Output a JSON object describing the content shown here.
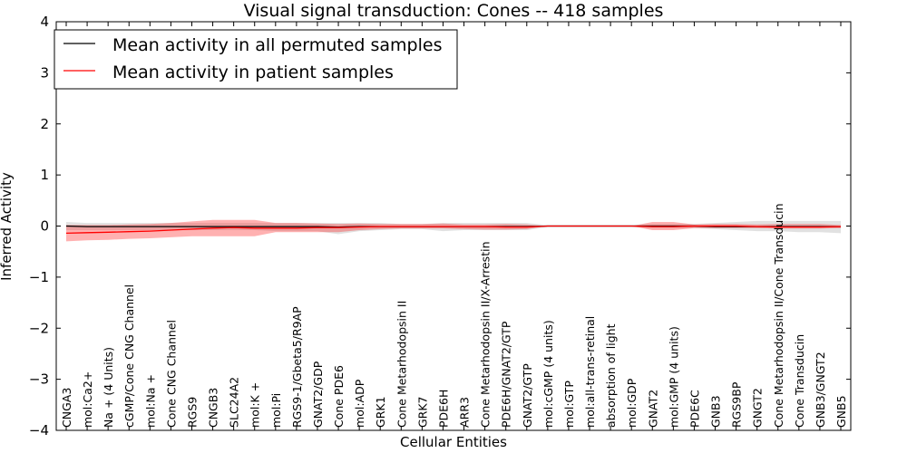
{
  "chart_data": {
    "type": "line",
    "title": "Visual signal transduction: Cones -- 418 samples",
    "xlabel": "Cellular Entities",
    "ylabel": "Inferred Activity",
    "ylim": [
      -4,
      4
    ],
    "yticks": [
      -4,
      -3,
      -2,
      -1,
      0,
      1,
      2,
      3,
      4
    ],
    "ytick_labels": [
      "−4",
      "−3",
      "−2",
      "−1",
      "0",
      "1",
      "2",
      "3",
      "4"
    ],
    "grid": false,
    "legend_position": "top-left",
    "categories": [
      "CNGA3",
      "mol:Ca2+",
      "Na + (4 Units)",
      "cGMP/Cone CNG Channel",
      "mol:Na +",
      "Cone CNG Channel",
      "RGS9",
      "CNGB3",
      "SLC24A2",
      "mol:K +",
      "mol:Pi",
      "RGS9-1/Gbeta5/R9AP",
      "GNAT2/GDP",
      "Cone PDE6",
      "mol:ADP",
      "GRK1",
      "Cone Metarhodopsin II",
      "GRK7",
      "PDE6H",
      "ARR3",
      "Cone Metarhodopsin II/X-Arrestin",
      "PDE6H/GNAT2/GTP",
      "GNAT2/GTP",
      "mol:cGMP (4 units)",
      "mol:GTP",
      "mol:all-trans-retinal",
      "absorption of light",
      "mol:GDP",
      "GNAT2",
      "mol:GMP (4 units)",
      "PDE6C",
      "GNB3",
      "RGS9BP",
      "GNGT2",
      "Cone Metarhodopsin II/Cone Transducin",
      "Cone Transducin",
      "GNB3/GNGT2",
      "GNB5"
    ],
    "series": [
      {
        "name": "Mean activity in all permuted samples",
        "color": "#000000",
        "values": [
          0.0,
          -0.01,
          -0.01,
          -0.01,
          -0.01,
          -0.01,
          -0.01,
          -0.01,
          -0.01,
          -0.01,
          -0.01,
          -0.01,
          -0.01,
          -0.02,
          -0.01,
          -0.01,
          -0.01,
          -0.01,
          -0.01,
          -0.01,
          -0.01,
          -0.01,
          -0.01,
          0.0,
          0.0,
          0.0,
          0.0,
          0.0,
          0.0,
          0.0,
          0.0,
          -0.01,
          -0.01,
          -0.01,
          -0.01,
          -0.01,
          -0.01,
          -0.01
        ],
        "band_low": [
          -0.08,
          -0.08,
          -0.08,
          -0.08,
          -0.08,
          -0.08,
          -0.08,
          -0.08,
          -0.08,
          -0.08,
          -0.1,
          -0.1,
          -0.1,
          -0.16,
          -0.1,
          -0.08,
          -0.06,
          -0.06,
          -0.1,
          -0.08,
          -0.08,
          -0.08,
          -0.08,
          -0.02,
          -0.02,
          -0.02,
          -0.02,
          -0.02,
          -0.04,
          -0.04,
          -0.04,
          -0.06,
          -0.08,
          -0.1,
          -0.1,
          -0.12,
          -0.12,
          -0.14
        ],
        "band_high": [
          0.08,
          0.06,
          0.06,
          0.06,
          0.06,
          0.06,
          0.06,
          0.06,
          0.06,
          0.06,
          0.06,
          0.06,
          0.06,
          0.06,
          0.06,
          0.06,
          0.04,
          0.04,
          0.06,
          0.06,
          0.06,
          0.06,
          0.06,
          0.02,
          0.02,
          0.02,
          0.02,
          0.02,
          0.04,
          0.04,
          0.04,
          0.06,
          0.08,
          0.1,
          0.1,
          0.1,
          0.1,
          0.1
        ]
      },
      {
        "name": "Mean activity in patient samples",
        "color": "#ff0000",
        "values": [
          -0.14,
          -0.13,
          -0.12,
          -0.11,
          -0.1,
          -0.08,
          -0.06,
          -0.04,
          -0.03,
          -0.04,
          -0.04,
          -0.04,
          -0.03,
          -0.03,
          -0.02,
          -0.01,
          -0.01,
          -0.01,
          -0.01,
          -0.01,
          -0.01,
          -0.02,
          -0.02,
          0.0,
          0.0,
          0.0,
          0.0,
          0.0,
          -0.01,
          -0.01,
          0.0,
          0.0,
          0.0,
          -0.01,
          -0.02,
          -0.02,
          -0.02,
          -0.01
        ],
        "band_low": [
          -0.3,
          -0.28,
          -0.27,
          -0.25,
          -0.24,
          -0.22,
          -0.2,
          -0.2,
          -0.2,
          -0.2,
          -0.12,
          -0.12,
          -0.12,
          -0.12,
          -0.08,
          -0.06,
          -0.05,
          -0.05,
          -0.05,
          -0.06,
          -0.07,
          -0.07,
          -0.06,
          0.0,
          0.0,
          0.0,
          0.0,
          0.0,
          -0.08,
          -0.08,
          -0.04,
          -0.04,
          -0.04,
          -0.04,
          -0.05,
          -0.05,
          -0.05,
          -0.04
        ],
        "band_high": [
          0.02,
          0.02,
          0.02,
          0.03,
          0.04,
          0.06,
          0.09,
          0.12,
          0.12,
          0.12,
          0.06,
          0.06,
          0.05,
          0.04,
          0.05,
          0.04,
          0.04,
          0.04,
          0.05,
          0.03,
          0.03,
          0.04,
          0.03,
          0.0,
          0.0,
          0.0,
          0.0,
          0.0,
          0.08,
          0.08,
          0.03,
          0.04,
          0.04,
          0.03,
          0.04,
          0.04,
          0.04,
          0.02
        ]
      }
    ]
  }
}
